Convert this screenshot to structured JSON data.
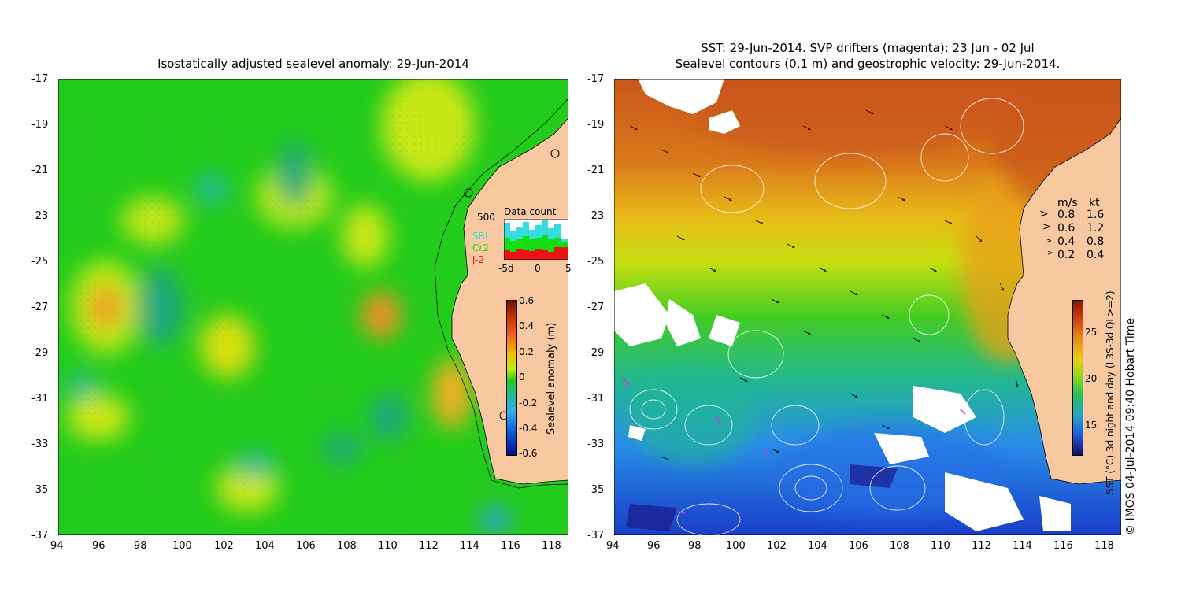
{
  "left_panel": {
    "title": "Isostatically adjusted sealevel anomaly: 29-Jun-2014",
    "y_ticks": [
      "-17",
      "-19",
      "-21",
      "-23",
      "-25",
      "-27",
      "-29",
      "-31",
      "-33",
      "-35",
      "-37"
    ],
    "x_ticks": [
      "94",
      "96",
      "98",
      "100",
      "102",
      "104",
      "106",
      "108",
      "110",
      "112",
      "114",
      "116",
      "118"
    ],
    "inset": {
      "title": "Data count",
      "y_label": "500",
      "legend": [
        {
          "label": "SRL",
          "color": "#33dddd"
        },
        {
          "label": "Cr2",
          "color": "#11dd11"
        },
        {
          "label": "J-2",
          "color": "#ee1111"
        }
      ],
      "x_labels": [
        "-5d",
        "0",
        "5"
      ]
    },
    "colorbar": {
      "label": "Sealevel anomaly (m)",
      "ticks": [
        "0.6",
        "0.4",
        "0.2",
        "0",
        "-0.2",
        "-0.4",
        "-0.6"
      ]
    }
  },
  "right_panel": {
    "title_line1": "SST: 29-Jun-2014. SVP drifters (magenta): 23 Jun - 02 Jul",
    "title_line2": "Sealevel contours (0.1 m) and geostrophic velocity: 29-Jun-2014.",
    "y_ticks": [
      "-17",
      "-19",
      "-21",
      "-23",
      "-25",
      "-27",
      "-29",
      "-31",
      "-33",
      "-35",
      "-37"
    ],
    "x_ticks": [
      "94",
      "96",
      "98",
      "100",
      "102",
      "104",
      "106",
      "108",
      "110",
      "112",
      "114",
      "116",
      "118"
    ],
    "velocity_legend": {
      "header_ms": "m/s",
      "header_kt": "kt",
      "rows": [
        {
          "ms": "0.8",
          "kt": "1.6"
        },
        {
          "ms": "0.6",
          "kt": "1.2"
        },
        {
          "ms": "0.4",
          "kt": "0.8"
        },
        {
          "ms": "0.2",
          "kt": "0.4"
        }
      ]
    },
    "colorbar": {
      "label": "SST (°C) 3d night and day (L3S-3d QL>=2)",
      "ticks": [
        "25",
        "20",
        "15"
      ]
    }
  },
  "credit": "© IMOS 04-Jul-2014 09:40 Hobart Time",
  "colors": {
    "land": "#f8c9a0",
    "sla_base": "#11cc11",
    "sst_warm": "#d2691e",
    "sst_cool": "#1e90ff"
  }
}
